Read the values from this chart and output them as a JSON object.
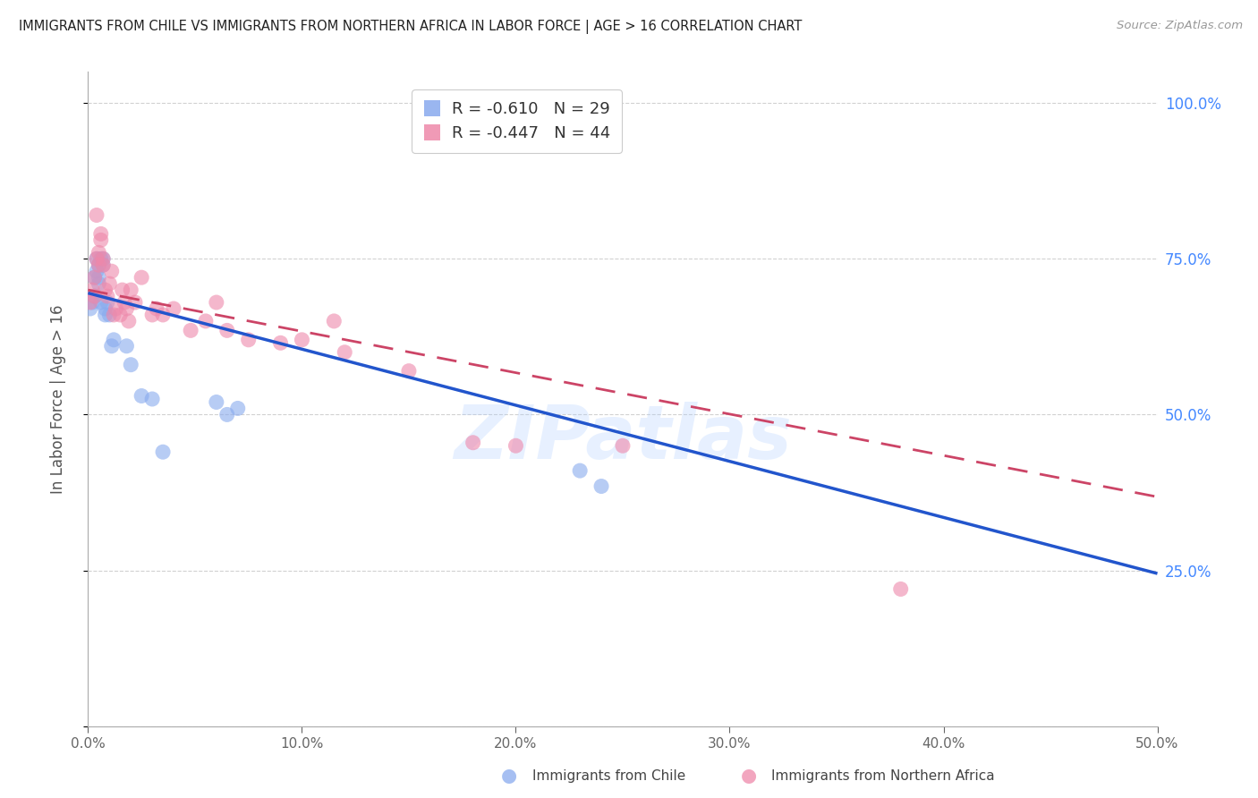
{
  "title": "IMMIGRANTS FROM CHILE VS IMMIGRANTS FROM NORTHERN AFRICA IN LABOR FORCE | AGE > 16 CORRELATION CHART",
  "source": "Source: ZipAtlas.com",
  "ylabel_left": "In Labor Force | Age > 16",
  "legend_label_chile": "Immigrants from Chile",
  "legend_label_nafr": "Immigrants from Northern Africa",
  "chile_R": -0.61,
  "chile_N": 29,
  "nafr_R": -0.447,
  "nafr_N": 44,
  "blue_color": "#88AAEE",
  "pink_color": "#EE88AA",
  "blue_line_color": "#2255CC",
  "pink_line_color": "#CC4466",
  "xlim": [
    0.0,
    0.5
  ],
  "ylim": [
    0.0,
    1.05
  ],
  "y_ticks_right": [
    0.25,
    0.5,
    0.75,
    1.0
  ],
  "x_ticks": [
    0.0,
    0.1,
    0.2,
    0.3,
    0.4,
    0.5
  ],
  "blue_line_x0": 0.0,
  "blue_line_y0": 0.695,
  "blue_line_x1": 0.5,
  "blue_line_y1": 0.245,
  "pink_line_x0": 0.0,
  "pink_line_y0": 0.7,
  "pink_line_x1": 0.5,
  "pink_line_y1": 0.368,
  "watermark": "ZIPatlas",
  "chile_x": [
    0.001,
    0.002,
    0.003,
    0.003,
    0.004,
    0.004,
    0.005,
    0.005,
    0.005,
    0.006,
    0.006,
    0.007,
    0.007,
    0.008,
    0.008,
    0.009,
    0.01,
    0.011,
    0.012,
    0.018,
    0.02,
    0.025,
    0.03,
    0.035,
    0.06,
    0.065,
    0.07,
    0.23,
    0.24
  ],
  "chile_y": [
    0.67,
    0.68,
    0.69,
    0.72,
    0.75,
    0.73,
    0.71,
    0.72,
    0.74,
    0.68,
    0.75,
    0.75,
    0.74,
    0.67,
    0.66,
    0.68,
    0.66,
    0.61,
    0.62,
    0.61,
    0.58,
    0.53,
    0.525,
    0.44,
    0.52,
    0.5,
    0.51,
    0.41,
    0.385
  ],
  "nafr_x": [
    0.001,
    0.002,
    0.003,
    0.003,
    0.004,
    0.004,
    0.005,
    0.005,
    0.006,
    0.006,
    0.007,
    0.007,
    0.008,
    0.009,
    0.01,
    0.011,
    0.012,
    0.013,
    0.015,
    0.016,
    0.017,
    0.018,
    0.019,
    0.02,
    0.022,
    0.025,
    0.03,
    0.032,
    0.035,
    0.04,
    0.048,
    0.055,
    0.06,
    0.065,
    0.075,
    0.09,
    0.1,
    0.115,
    0.12,
    0.15,
    0.18,
    0.2,
    0.25,
    0.38
  ],
  "nafr_y": [
    0.68,
    0.7,
    0.69,
    0.72,
    0.82,
    0.75,
    0.76,
    0.74,
    0.78,
    0.79,
    0.74,
    0.75,
    0.7,
    0.69,
    0.71,
    0.73,
    0.66,
    0.67,
    0.66,
    0.7,
    0.68,
    0.67,
    0.65,
    0.7,
    0.68,
    0.72,
    0.66,
    0.67,
    0.66,
    0.67,
    0.635,
    0.65,
    0.68,
    0.635,
    0.62,
    0.615,
    0.62,
    0.65,
    0.6,
    0.57,
    0.455,
    0.45,
    0.45,
    0.22
  ]
}
